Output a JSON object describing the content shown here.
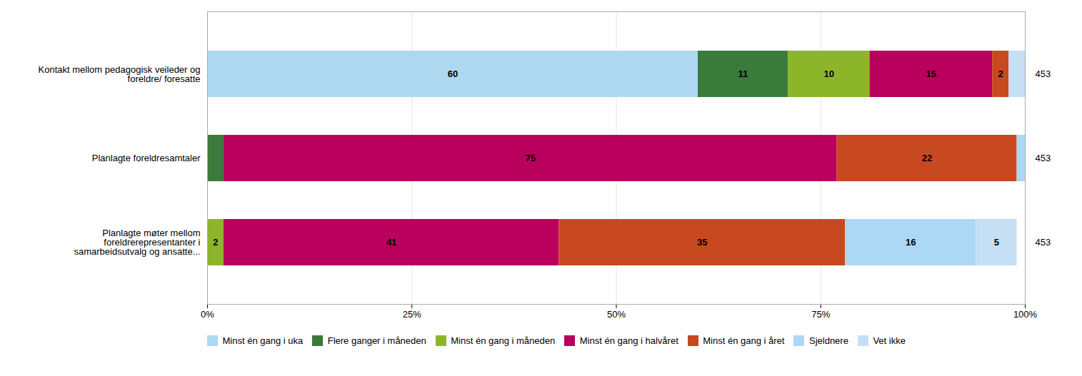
{
  "chart_data": {
    "type": "bar",
    "orientation": "horizontal",
    "stacked": true,
    "data_labels": true,
    "grid": true,
    "legend": "bottom",
    "categories": [
      "Kontakt mellom pedagogisk veileder og\nforeldre/ foresatte",
      "Planlagte foreldresamtaler",
      "Planlagte møter mellom\nforeldrerepresentanter i\nsamarbeidsutvalg og ansatte..."
    ],
    "series": [
      {
        "name": "Minst én gang i uka",
        "color": "#add8f0",
        "values": [
          60,
          0,
          0
        ],
        "value_labels": [
          "60",
          null,
          null
        ]
      },
      {
        "name": "Flere ganger i måneden",
        "color": "#3a7a3a",
        "values": [
          11,
          2,
          0
        ],
        "value_labels": [
          "11",
          null,
          null
        ]
      },
      {
        "name": "Minst én gang i måneden",
        "color": "#8db52a",
        "values": [
          10,
          0,
          2
        ],
        "value_labels": [
          "10",
          null,
          "2"
        ]
      },
      {
        "name": "Minst én gang i halvåret",
        "color": "#b8005c",
        "values": [
          15,
          75,
          41
        ],
        "value_labels": [
          "15",
          "75",
          "41"
        ]
      },
      {
        "name": "Minst én gang i året",
        "color": "#c84820",
        "values": [
          2,
          22,
          35
        ],
        "value_labels": [
          "2",
          "22",
          "35"
        ]
      },
      {
        "name": "Sjeldnere",
        "color": "#add8f5",
        "values": [
          0,
          1,
          16
        ],
        "value_labels": [
          null,
          null,
          "16"
        ]
      },
      {
        "name": "Vet ikke",
        "color": "#c5dff5",
        "values": [
          2,
          0,
          5
        ],
        "value_labels": [
          null,
          null,
          "5"
        ]
      }
    ],
    "n_labels": [
      453,
      453,
      453
    ],
    "xlim": [
      0,
      100
    ],
    "xticks": [
      {
        "value": 0,
        "label": "0%"
      },
      {
        "value": 25,
        "label": "25%"
      },
      {
        "value": 50,
        "label": "50%"
      },
      {
        "value": 75,
        "label": "75%"
      },
      {
        "value": 100,
        "label": "100%"
      }
    ]
  }
}
